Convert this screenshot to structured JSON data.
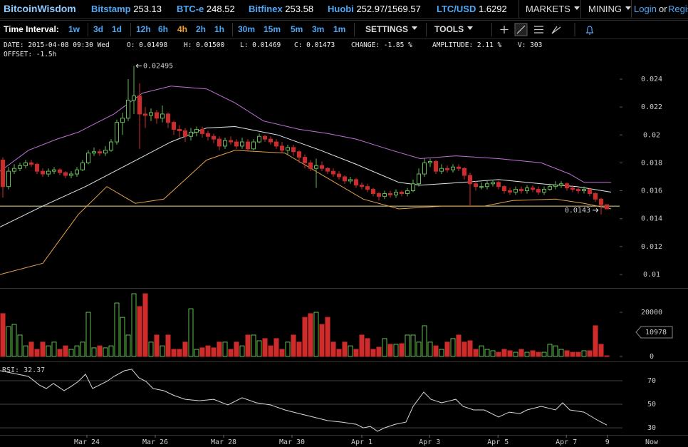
{
  "header": {
    "brand": "BitcoinWisdom",
    "tickers": [
      {
        "name": "Bitstamp",
        "price": "253.13"
      },
      {
        "name": "BTC-e",
        "price": "248.52"
      },
      {
        "name": "Bitfinex",
        "price": "253.58"
      },
      {
        "name": "Huobi",
        "price": "252.97/1569.57"
      },
      {
        "name": "LTC/USD",
        "price": "1.6292"
      }
    ],
    "menus": [
      "MARKETS",
      "MINING"
    ],
    "login": "Login",
    "or": "or",
    "register": "Register"
  },
  "toolbar": {
    "label": "Time Interval:",
    "intervals": [
      "1w",
      "3d",
      "1d",
      "12h",
      "6h",
      "4h",
      "2h",
      "1h",
      "30m",
      "15m",
      "5m",
      "3m",
      "1m"
    ],
    "active_interval": "4h",
    "settings": "SETTINGS",
    "tools": "TOOLS"
  },
  "info": {
    "line1": [
      "DATE: 2015-04-08 09:30 Wed",
      "O: 0.01498",
      "H: 0.01500",
      "L: 0.01469",
      "C: 0.01473",
      "CHANGE: -1.85 %",
      "AMPLITUDE: 2.11 %",
      "V: 303"
    ],
    "offset": "OFFSET: -1.5h"
  },
  "chart_data": [
    {
      "type": "candlestick",
      "up_color": "#5fbf4f",
      "down_color": "#cf2b2b",
      "xlim": [
        0,
        108.75
      ],
      "ylim": [
        0.0091,
        0.0252
      ],
      "yticks": [
        0.01,
        0.012,
        0.014,
        0.016,
        0.018,
        0.02,
        0.022,
        0.024
      ],
      "max_label": "0.02495",
      "min_label": "0.0143",
      "price_line": {
        "value": 0.0149,
        "color": "#e6d9a0"
      },
      "bands": [
        {
          "color": "#c070d8",
          "x": [
            0,
            5,
            10,
            13.75,
            20,
            25,
            30,
            36.25,
            41.25,
            46.25,
            52.5,
            57.5,
            62.5,
            68.75,
            73.75,
            80,
            87.5,
            95,
            100,
            102.5,
            107.25
          ],
          "values": [
            0.0174,
            0.0189,
            0.0197,
            0.0202,
            0.0215,
            0.023,
            0.0235,
            0.0233,
            0.0223,
            0.021,
            0.0204,
            0.0201,
            0.0197,
            0.0189,
            0.0183,
            0.0185,
            0.0183,
            0.018,
            0.0172,
            0.0166,
            0.0166
          ]
        },
        {
          "color": "#dde8f0",
          "x": [
            0,
            7.5,
            15,
            22.5,
            30,
            36.25,
            41.25,
            48.75,
            56.25,
            62.5,
            70,
            73.75,
            81.25,
            87.5,
            95,
            101.25,
            107.25
          ],
          "values": [
            0.0134,
            0.0149,
            0.0163,
            0.0179,
            0.0195,
            0.0205,
            0.0206,
            0.02,
            0.0189,
            0.0179,
            0.0166,
            0.0164,
            0.0166,
            0.0168,
            0.0165,
            0.0163,
            0.0159
          ]
        },
        {
          "color": "#e8a04a",
          "x": [
            0,
            7.5,
            13.75,
            18.75,
            23.75,
            28.75,
            36.25,
            41.25,
            50,
            57.5,
            63.75,
            70,
            77.5,
            85,
            90,
            97.5,
            102.5,
            107.25
          ],
          "values": [
            0.01,
            0.0108,
            0.0143,
            0.0163,
            0.0151,
            0.0154,
            0.0182,
            0.0189,
            0.0187,
            0.0169,
            0.0154,
            0.0147,
            0.0149,
            0.0149,
            0.0153,
            0.0154,
            0.0151,
            0.0147
          ]
        }
      ],
      "ohlc": [
        [
          0.0182,
          0.0184,
          0.0155,
          0.0163
        ],
        [
          0.0163,
          0.0177,
          0.0161,
          0.0174
        ],
        [
          0.0174,
          0.0179,
          0.0172,
          0.0176
        ],
        [
          0.0176,
          0.018,
          0.0174,
          0.0178
        ],
        [
          0.0178,
          0.0182,
          0.0176,
          0.018
        ],
        [
          0.018,
          0.0182,
          0.0177,
          0.0179
        ],
        [
          0.0179,
          0.018,
          0.0172,
          0.0174
        ],
        [
          0.0174,
          0.0176,
          0.017,
          0.0172
        ],
        [
          0.0172,
          0.0176,
          0.017,
          0.0174
        ],
        [
          0.0174,
          0.0177,
          0.0172,
          0.0175
        ],
        [
          0.0175,
          0.0176,
          0.0171,
          0.0173
        ],
        [
          0.0173,
          0.0174,
          0.0169,
          0.0171
        ],
        [
          0.0171,
          0.0174,
          0.0169,
          0.0172
        ],
        [
          0.0172,
          0.0177,
          0.017,
          0.0175
        ],
        [
          0.0175,
          0.0182,
          0.0174,
          0.018
        ],
        [
          0.018,
          0.0189,
          0.0179,
          0.0187
        ],
        [
          0.0187,
          0.0191,
          0.0185,
          0.0188
        ],
        [
          0.0188,
          0.019,
          0.0185,
          0.0187
        ],
        [
          0.0187,
          0.0192,
          0.0185,
          0.0189
        ],
        [
          0.0189,
          0.0197,
          0.0188,
          0.0195
        ],
        [
          0.0195,
          0.0211,
          0.0193,
          0.0209
        ],
        [
          0.0209,
          0.0216,
          0.02,
          0.0212
        ],
        [
          0.0212,
          0.024,
          0.021,
          0.0225
        ],
        [
          0.0225,
          0.02495,
          0.0215,
          0.0228
        ],
        [
          0.0228,
          0.0237,
          0.019,
          0.0215
        ],
        [
          0.0215,
          0.022,
          0.0205,
          0.0214
        ],
        [
          0.0214,
          0.0219,
          0.021,
          0.0216
        ],
        [
          0.0216,
          0.0218,
          0.0208,
          0.0212
        ],
        [
          0.0212,
          0.0221,
          0.0209,
          0.0215
        ],
        [
          0.0215,
          0.0216,
          0.0205,
          0.0209
        ],
        [
          0.0209,
          0.021,
          0.02,
          0.0204
        ],
        [
          0.0204,
          0.0207,
          0.0198,
          0.0203
        ],
        [
          0.0203,
          0.0205,
          0.0195,
          0.0199
        ],
        [
          0.0199,
          0.0205,
          0.0196,
          0.0202
        ],
        [
          0.0202,
          0.0206,
          0.0199,
          0.0204
        ],
        [
          0.0204,
          0.0206,
          0.0198,
          0.0201
        ],
        [
          0.0201,
          0.0203,
          0.0196,
          0.0199
        ],
        [
          0.0199,
          0.0201,
          0.0194,
          0.0197
        ],
        [
          0.0197,
          0.0199,
          0.0189,
          0.0192
        ],
        [
          0.0192,
          0.0198,
          0.019,
          0.0196
        ],
        [
          0.0196,
          0.0199,
          0.0193,
          0.0195
        ],
        [
          0.0195,
          0.0197,
          0.019,
          0.0192
        ],
        [
          0.0192,
          0.0198,
          0.019,
          0.0195
        ],
        [
          0.0195,
          0.0197,
          0.0188,
          0.019
        ],
        [
          0.019,
          0.0197,
          0.0189,
          0.0195
        ],
        [
          0.0195,
          0.0201,
          0.0194,
          0.0199
        ],
        [
          0.0199,
          0.02,
          0.0195,
          0.0197
        ],
        [
          0.0197,
          0.0199,
          0.0193,
          0.0195
        ],
        [
          0.0195,
          0.0197,
          0.019,
          0.0192
        ],
        [
          0.0192,
          0.0195,
          0.0187,
          0.0189
        ],
        [
          0.0189,
          0.0193,
          0.0186,
          0.0191
        ],
        [
          0.0191,
          0.0193,
          0.0185,
          0.0188
        ],
        [
          0.0188,
          0.0189,
          0.018,
          0.0184
        ],
        [
          0.0184,
          0.0186,
          0.0176,
          0.018
        ],
        [
          0.018,
          0.0182,
          0.0174,
          0.0176
        ],
        [
          0.0176,
          0.0183,
          0.0162,
          0.0178
        ],
        [
          0.0178,
          0.0181,
          0.0174,
          0.0176
        ],
        [
          0.0176,
          0.0177,
          0.0172,
          0.0174
        ],
        [
          0.0174,
          0.0176,
          0.017,
          0.0172
        ],
        [
          0.0172,
          0.0174,
          0.0168,
          0.017
        ],
        [
          0.017,
          0.0171,
          0.0165,
          0.0167
        ],
        [
          0.0167,
          0.017,
          0.0165,
          0.0168
        ],
        [
          0.0168,
          0.0169,
          0.0162,
          0.0164
        ],
        [
          0.0164,
          0.0166,
          0.0161,
          0.0163
        ],
        [
          0.0163,
          0.0165,
          0.0159,
          0.0161
        ],
        [
          0.0161,
          0.0162,
          0.0156,
          0.0158
        ],
        [
          0.0158,
          0.0159,
          0.0153,
          0.0156
        ],
        [
          0.0156,
          0.016,
          0.0154,
          0.0158
        ],
        [
          0.0158,
          0.016,
          0.0155,
          0.0157
        ],
        [
          0.0157,
          0.0161,
          0.0155,
          0.0159
        ],
        [
          0.0159,
          0.016,
          0.0156,
          0.0158
        ],
        [
          0.0158,
          0.0162,
          0.0156,
          0.016
        ],
        [
          0.016,
          0.0168,
          0.0159,
          0.0165
        ],
        [
          0.0165,
          0.0176,
          0.0163,
          0.0172
        ],
        [
          0.0172,
          0.0183,
          0.017,
          0.018
        ],
        [
          0.018,
          0.0183,
          0.0177,
          0.0181
        ],
        [
          0.0181,
          0.0182,
          0.0172,
          0.0174
        ],
        [
          0.0174,
          0.0179,
          0.0172,
          0.0176
        ],
        [
          0.0176,
          0.0178,
          0.0173,
          0.0175
        ],
        [
          0.0175,
          0.0179,
          0.0173,
          0.0177
        ],
        [
          0.0177,
          0.0179,
          0.0174,
          0.0176
        ],
        [
          0.0176,
          0.0177,
          0.0168,
          0.0171
        ],
        [
          0.0171,
          0.0173,
          0.0149,
          0.0165
        ],
        [
          0.0165,
          0.0167,
          0.016,
          0.0163
        ],
        [
          0.0163,
          0.0166,
          0.0161,
          0.0163
        ],
        [
          0.0163,
          0.0167,
          0.0161,
          0.0165
        ],
        [
          0.0165,
          0.0168,
          0.0163,
          0.0166
        ],
        [
          0.0166,
          0.0167,
          0.0161,
          0.0163
        ],
        [
          0.0163,
          0.0164,
          0.0158,
          0.016
        ],
        [
          0.016,
          0.0162,
          0.0157,
          0.0159
        ],
        [
          0.0159,
          0.0163,
          0.0157,
          0.0161
        ],
        [
          0.0161,
          0.0163,
          0.0158,
          0.016
        ],
        [
          0.016,
          0.0164,
          0.0158,
          0.0162
        ],
        [
          0.0162,
          0.0164,
          0.0159,
          0.0161
        ],
        [
          0.0161,
          0.0163,
          0.0157,
          0.0159
        ],
        [
          0.0159,
          0.0163,
          0.0157,
          0.0161
        ],
        [
          0.0161,
          0.0165,
          0.016,
          0.0163
        ],
        [
          0.0163,
          0.0167,
          0.0161,
          0.0164
        ],
        [
          0.0164,
          0.0167,
          0.0162,
          0.0165
        ],
        [
          0.0165,
          0.0166,
          0.016,
          0.0162
        ],
        [
          0.0162,
          0.0164,
          0.0159,
          0.0161
        ],
        [
          0.0161,
          0.0162,
          0.0158,
          0.016
        ],
        [
          0.016,
          0.0163,
          0.0158,
          0.0161
        ],
        [
          0.0161,
          0.0162,
          0.0156,
          0.0158
        ],
        [
          0.0158,
          0.0159,
          0.0152,
          0.0154
        ],
        [
          0.0154,
          0.0155,
          0.0143,
          0.015
        ],
        [
          0.015,
          0.015,
          0.0147,
          0.0147
        ]
      ]
    },
    {
      "type": "bar",
      "xlim": [
        0,
        108.75
      ],
      "ylim": [
        0,
        29700
      ],
      "yticks": [
        0,
        20000
      ],
      "current_value": 10978,
      "values": [
        19400,
        13500,
        14500,
        9700,
        4800,
        6500,
        3200,
        6500,
        4800,
        6500,
        3200,
        4800,
        3200,
        4800,
        6500,
        20000,
        3900,
        4800,
        3900,
        4800,
        24200,
        17700,
        9700,
        28400,
        22600,
        28400,
        6500,
        9700,
        4800,
        9700,
        3200,
        3200,
        6500,
        21600,
        3200,
        3900,
        4800,
        3900,
        6500,
        6500,
        3200,
        6500,
        4800,
        9700,
        9700,
        7100,
        8100,
        4800,
        8100,
        3200,
        6500,
        9700,
        6500,
        17700,
        19400,
        20000,
        14500,
        17700,
        6500,
        3200,
        6500,
        4800,
        3200,
        9700,
        8100,
        3200,
        4200,
        8100,
        5500,
        5500,
        5800,
        9700,
        9700,
        6500,
        13900,
        6500,
        4800,
        3200,
        6500,
        8100,
        9700,
        6500,
        7100,
        3200,
        4800,
        3200,
        2600,
        1900,
        3200,
        2600,
        1900,
        3200,
        1900,
        2600,
        1900,
        1900,
        5500,
        4800,
        3200,
        2600,
        1900,
        1900,
        2600,
        2600,
        13900,
        5500,
        303
      ]
    },
    {
      "type": "line",
      "label": "RSI: 32.37",
      "color": "#d8d8d8",
      "grid": true,
      "xlim": [
        0,
        108.75
      ],
      "ylim": [
        24,
        84.5
      ],
      "yticks": [
        30,
        50,
        70
      ],
      "xticks": [
        {
          "value": 15.25,
          "label": "Mar 24"
        },
        {
          "value": 27.25,
          "label": "Mar 26"
        },
        {
          "value": 39.25,
          "label": "Mar 28"
        },
        {
          "value": 51.25,
          "label": "Mar 30"
        },
        {
          "value": 63.5,
          "label": "Apr 1"
        },
        {
          "value": 75.4,
          "label": "Apr 3"
        },
        {
          "value": 87.4,
          "label": "Apr 5"
        },
        {
          "value": 99.4,
          "label": "Apr 7"
        },
        {
          "value": 106.6,
          "label": "9"
        }
      ],
      "now_label": "Now",
      "x": [
        0,
        5,
        6.875,
        8.125,
        9.375,
        11.25,
        12.5,
        13.75,
        15,
        16.25,
        17.5,
        18.75,
        20,
        21.875,
        23.125,
        24.375,
        25.625,
        26.875,
        28.75,
        30.625,
        32.5,
        35,
        37.5,
        40,
        42.5,
        45,
        47.5,
        50,
        52.5,
        55,
        57.5,
        60,
        62.5,
        63.75,
        65,
        66.25,
        67.5,
        69.375,
        71.25,
        72.5,
        74.375,
        75.625,
        77.5,
        80,
        81.25,
        83.125,
        85,
        87.5,
        89.375,
        91.25,
        92.5,
        95,
        97.5,
        98.75,
        100,
        102.5,
        105,
        106.5
      ],
      "values": [
        78.5,
        73.6,
        66.4,
        63.3,
        67.6,
        61.5,
        65.2,
        69.4,
        75.5,
        63.3,
        66.4,
        69.4,
        73.6,
        78.5,
        79.7,
        72.4,
        69.4,
        63.3,
        61.5,
        57.3,
        54.2,
        53,
        54.2,
        49.4,
        55.5,
        51.2,
        49.4,
        45.2,
        42.1,
        39.1,
        36.1,
        34.8,
        33,
        30,
        31.2,
        27,
        30,
        33,
        34.8,
        48.2,
        60.3,
        54.2,
        51.2,
        54.2,
        48.2,
        45.2,
        45.2,
        39.1,
        43.3,
        42.1,
        45.2,
        48.2,
        45.2,
        51.2,
        45.2,
        43.3,
        36.1,
        32.37
      ]
    }
  ]
}
